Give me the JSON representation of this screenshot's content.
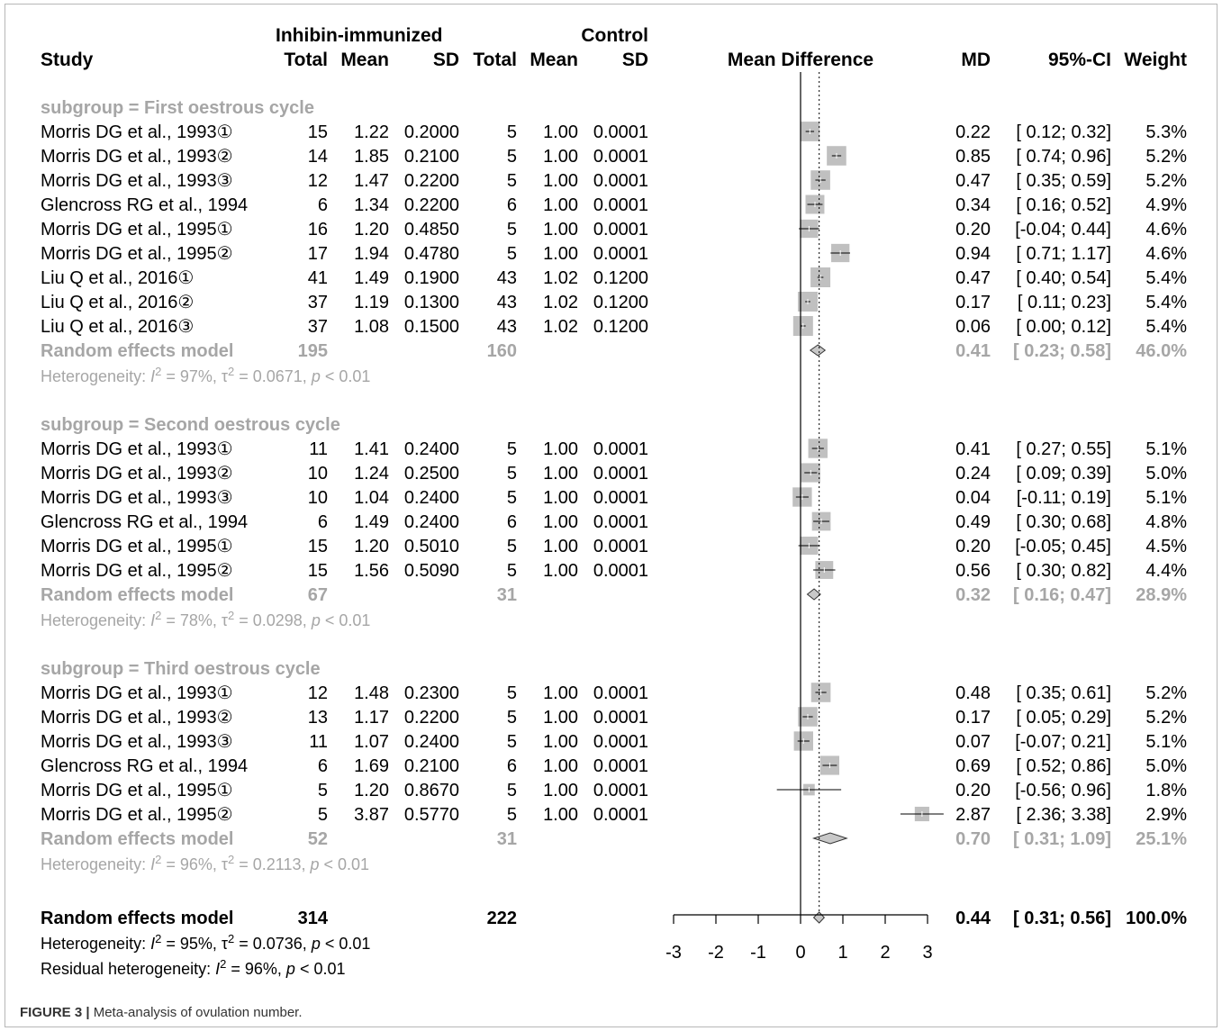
{
  "caption": {
    "label": "FIGURE 3 |",
    "text": "Meta-analysis of ovulation number."
  },
  "headers": {
    "study": "Study",
    "group1": "Inhibin-immunized",
    "group2": "Control",
    "total": "Total",
    "mean": "Mean",
    "sd": "SD",
    "plot": "Mean Difference",
    "md": "MD",
    "ci": "95%-CI",
    "weight": "Weight"
  },
  "chart_data": {
    "type": "forest",
    "xlim": [
      -3,
      3
    ],
    "xticks": [
      "-3",
      "-2",
      "-1",
      "0",
      "1",
      "2",
      "3"
    ],
    "null_line": 0,
    "overall_line": 0.44,
    "subgroups": [
      {
        "label": "subgroup = First oestrous cycle",
        "studies": [
          {
            "study": "Morris DG et al., 1993①",
            "t1": "15",
            "m1": "1.22",
            "s1": "0.2000",
            "t2": "5",
            "m2": "1.00",
            "s2": "0.0001",
            "md": 0.22,
            "lo": 0.12,
            "hi": 0.32,
            "md_text": "0.22",
            "ci_text": "[ 0.12; 0.32]",
            "weight": "5.3%",
            "w": 5.3
          },
          {
            "study": "Morris DG et al., 1993②",
            "t1": "14",
            "m1": "1.85",
            "s1": "0.2100",
            "t2": "5",
            "m2": "1.00",
            "s2": "0.0001",
            "md": 0.85,
            "lo": 0.74,
            "hi": 0.96,
            "md_text": "0.85",
            "ci_text": "[ 0.74; 0.96]",
            "weight": "5.2%",
            "w": 5.2
          },
          {
            "study": "Morris DG et al., 1993③",
            "t1": "12",
            "m1": "1.47",
            "s1": "0.2200",
            "t2": "5",
            "m2": "1.00",
            "s2": "0.0001",
            "md": 0.47,
            "lo": 0.35,
            "hi": 0.59,
            "md_text": "0.47",
            "ci_text": "[ 0.35; 0.59]",
            "weight": "5.2%",
            "w": 5.2
          },
          {
            "study": "Glencross RG et al., 1994",
            "t1": "6",
            "m1": "1.34",
            "s1": "0.2200",
            "t2": "6",
            "m2": "1.00",
            "s2": "0.0001",
            "md": 0.34,
            "lo": 0.16,
            "hi": 0.52,
            "md_text": "0.34",
            "ci_text": "[ 0.16; 0.52]",
            "weight": "4.9%",
            "w": 4.9
          },
          {
            "study": "Morris DG et al., 1995①",
            "t1": "16",
            "m1": "1.20",
            "s1": "0.4850",
            "t2": "5",
            "m2": "1.00",
            "s2": "0.0001",
            "md": 0.2,
            "lo": -0.04,
            "hi": 0.44,
            "md_text": "0.20",
            "ci_text": "[-0.04; 0.44]",
            "weight": "4.6%",
            "w": 4.6
          },
          {
            "study": "Morris DG et al., 1995②",
            "t1": "17",
            "m1": "1.94",
            "s1": "0.4780",
            "t2": "5",
            "m2": "1.00",
            "s2": "0.0001",
            "md": 0.94,
            "lo": 0.71,
            "hi": 1.17,
            "md_text": "0.94",
            "ci_text": "[ 0.71; 1.17]",
            "weight": "4.6%",
            "w": 4.6
          },
          {
            "study": "Liu Q et al., 2016①",
            "t1": "41",
            "m1": "1.49",
            "s1": "0.1900",
            "t2": "43",
            "m2": "1.02",
            "s2": "0.1200",
            "md": 0.47,
            "lo": 0.4,
            "hi": 0.54,
            "md_text": "0.47",
            "ci_text": "[ 0.40; 0.54]",
            "weight": "5.4%",
            "w": 5.4
          },
          {
            "study": "Liu Q et al., 2016②",
            "t1": "37",
            "m1": "1.19",
            "s1": "0.1300",
            "t2": "43",
            "m2": "1.02",
            "s2": "0.1200",
            "md": 0.17,
            "lo": 0.11,
            "hi": 0.23,
            "md_text": "0.17",
            "ci_text": "[ 0.11; 0.23]",
            "weight": "5.4%",
            "w": 5.4
          },
          {
            "study": "Liu Q et al., 2016③",
            "t1": "37",
            "m1": "1.08",
            "s1": "0.1500",
            "t2": "43",
            "m2": "1.02",
            "s2": "0.1200",
            "md": 0.06,
            "lo": 0.0,
            "hi": 0.12,
            "md_text": "0.06",
            "ci_text": "[ 0.00; 0.12]",
            "weight": "5.4%",
            "w": 5.4
          }
        ],
        "model": {
          "label": "Random effects model",
          "t1": "195",
          "t2": "160",
          "md": 0.41,
          "lo": 0.23,
          "hi": 0.58,
          "md_text": "0.41",
          "ci_text": "[ 0.23; 0.58]",
          "weight": "46.0%"
        },
        "heterogeneity": {
          "prefix": "Heterogeneity: ",
          "i2": "I",
          "i2_sup": "2",
          "i2_val": " = 97%, ",
          "tau": "τ",
          "tau_sup": "2",
          "tau_val": " = 0.0671, ",
          "p": "p",
          "p_val": " < 0.01"
        }
      },
      {
        "label": "subgroup = Second oestrous cycle",
        "studies": [
          {
            "study": "Morris DG et al., 1993①",
            "t1": "11",
            "m1": "1.41",
            "s1": "0.2400",
            "t2": "5",
            "m2": "1.00",
            "s2": "0.0001",
            "md": 0.41,
            "lo": 0.27,
            "hi": 0.55,
            "md_text": "0.41",
            "ci_text": "[ 0.27; 0.55]",
            "weight": "5.1%",
            "w": 5.1
          },
          {
            "study": "Morris DG et al., 1993②",
            "t1": "10",
            "m1": "1.24",
            "s1": "0.2500",
            "t2": "5",
            "m2": "1.00",
            "s2": "0.0001",
            "md": 0.24,
            "lo": 0.09,
            "hi": 0.39,
            "md_text": "0.24",
            "ci_text": "[ 0.09; 0.39]",
            "weight": "5.0%",
            "w": 5.0
          },
          {
            "study": "Morris DG et al., 1993③",
            "t1": "10",
            "m1": "1.04",
            "s1": "0.2400",
            "t2": "5",
            "m2": "1.00",
            "s2": "0.0001",
            "md": 0.04,
            "lo": -0.11,
            "hi": 0.19,
            "md_text": "0.04",
            "ci_text": "[-0.11; 0.19]",
            "weight": "5.1%",
            "w": 5.1
          },
          {
            "study": "Glencross RG et al., 1994",
            "t1": "6",
            "m1": "1.49",
            "s1": "0.2400",
            "t2": "6",
            "m2": "1.00",
            "s2": "0.0001",
            "md": 0.49,
            "lo": 0.3,
            "hi": 0.68,
            "md_text": "0.49",
            "ci_text": "[ 0.30; 0.68]",
            "weight": "4.8%",
            "w": 4.8
          },
          {
            "study": "Morris DG et al., 1995①",
            "t1": "15",
            "m1": "1.20",
            "s1": "0.5010",
            "t2": "5",
            "m2": "1.00",
            "s2": "0.0001",
            "md": 0.2,
            "lo": -0.05,
            "hi": 0.45,
            "md_text": "0.20",
            "ci_text": "[-0.05; 0.45]",
            "weight": "4.5%",
            "w": 4.5
          },
          {
            "study": "Morris DG et al., 1995②",
            "t1": "15",
            "m1": "1.56",
            "s1": "0.5090",
            "t2": "5",
            "m2": "1.00",
            "s2": "0.0001",
            "md": 0.56,
            "lo": 0.3,
            "hi": 0.82,
            "md_text": "0.56",
            "ci_text": "[ 0.30; 0.82]",
            "weight": "4.4%",
            "w": 4.4
          }
        ],
        "model": {
          "label": "Random effects model",
          "t1": "67",
          "t2": "31",
          "md": 0.32,
          "lo": 0.16,
          "hi": 0.47,
          "md_text": "0.32",
          "ci_text": "[ 0.16; 0.47]",
          "weight": "28.9%"
        },
        "heterogeneity": {
          "prefix": "Heterogeneity: ",
          "i2": "I",
          "i2_sup": "2",
          "i2_val": " = 78%, ",
          "tau": "τ",
          "tau_sup": "2",
          "tau_val": " = 0.0298, ",
          "p": "p",
          "p_val": " < 0.01"
        }
      },
      {
        "label": "subgroup = Third oestrous cycle",
        "studies": [
          {
            "study": "Morris DG et al., 1993①",
            "t1": "12",
            "m1": "1.48",
            "s1": "0.2300",
            "t2": "5",
            "m2": "1.00",
            "s2": "0.0001",
            "md": 0.48,
            "lo": 0.35,
            "hi": 0.61,
            "md_text": "0.48",
            "ci_text": "[ 0.35; 0.61]",
            "weight": "5.2%",
            "w": 5.2
          },
          {
            "study": "Morris DG et al., 1993②",
            "t1": "13",
            "m1": "1.17",
            "s1": "0.2200",
            "t2": "5",
            "m2": "1.00",
            "s2": "0.0001",
            "md": 0.17,
            "lo": 0.05,
            "hi": 0.29,
            "md_text": "0.17",
            "ci_text": "[ 0.05; 0.29]",
            "weight": "5.2%",
            "w": 5.2
          },
          {
            "study": "Morris DG et al., 1993③",
            "t1": "11",
            "m1": "1.07",
            "s1": "0.2400",
            "t2": "5",
            "m2": "1.00",
            "s2": "0.0001",
            "md": 0.07,
            "lo": -0.07,
            "hi": 0.21,
            "md_text": "0.07",
            "ci_text": "[-0.07; 0.21]",
            "weight": "5.1%",
            "w": 5.1
          },
          {
            "study": "Glencross RG et al., 1994",
            "t1": "6",
            "m1": "1.69",
            "s1": "0.2100",
            "t2": "6",
            "m2": "1.00",
            "s2": "0.0001",
            "md": 0.69,
            "lo": 0.52,
            "hi": 0.86,
            "md_text": "0.69",
            "ci_text": "[ 0.52; 0.86]",
            "weight": "5.0%",
            "w": 5.0
          },
          {
            "study": "Morris DG et al., 1995①",
            "t1": "5",
            "m1": "1.20",
            "s1": "0.8670",
            "t2": "5",
            "m2": "1.00",
            "s2": "0.0001",
            "md": 0.2,
            "lo": -0.56,
            "hi": 0.96,
            "md_text": "0.20",
            "ci_text": "[-0.56; 0.96]",
            "weight": "1.8%",
            "w": 1.8
          },
          {
            "study": "Morris DG et al., 1995②",
            "t1": "5",
            "m1": "3.87",
            "s1": "0.5770",
            "t2": "5",
            "m2": "1.00",
            "s2": "0.0001",
            "md": 2.87,
            "lo": 2.36,
            "hi": 3.38,
            "md_text": "2.87",
            "ci_text": "[ 2.36; 3.38]",
            "weight": "2.9%",
            "w": 2.9
          }
        ],
        "model": {
          "label": "Random effects model",
          "t1": "52",
          "t2": "31",
          "md": 0.7,
          "lo": 0.31,
          "hi": 1.09,
          "md_text": "0.70",
          "ci_text": "[ 0.31; 1.09]",
          "weight": "25.1%"
        },
        "heterogeneity": {
          "prefix": "Heterogeneity: ",
          "i2": "I",
          "i2_sup": "2",
          "i2_val": " = 96%, ",
          "tau": "τ",
          "tau_sup": "2",
          "tau_val": " = 0.2113, ",
          "p": "p",
          "p_val": " < 0.01"
        }
      }
    ],
    "overall": {
      "label": "Random effects model",
      "t1": "314",
      "t2": "222",
      "md": 0.44,
      "lo": 0.31,
      "hi": 0.56,
      "md_text": "0.44",
      "ci_text": "[ 0.31; 0.56]",
      "weight": "100.0%",
      "heterogeneity": {
        "prefix": "Heterogeneity: ",
        "i2": "I",
        "i2_sup": "2",
        "i2_val": " = 95%, ",
        "tau": "τ",
        "tau_sup": "2",
        "tau_val": " = 0.0736, ",
        "p": "p",
        "p_val": " < 0.01"
      },
      "residual": {
        "prefix": "Residual heterogeneity: ",
        "i2": "I",
        "i2_sup": "2",
        "i2_val": " = 96%, ",
        "p": "p",
        "p_val": " < 0.01"
      }
    }
  },
  "colors": {
    "square": "#c0c0c0",
    "diamond": "#c8c8c8",
    "grey_text": "#a6a6a6"
  }
}
